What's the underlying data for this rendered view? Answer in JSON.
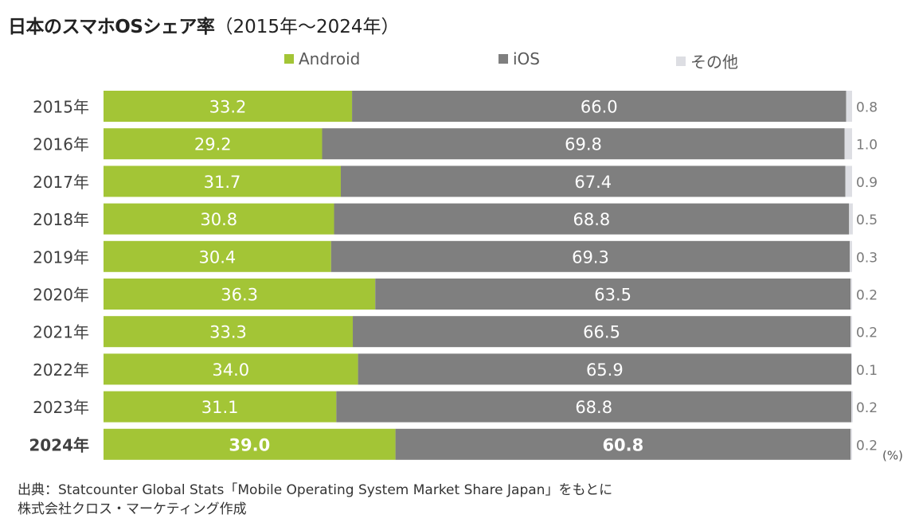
{
  "title": "日本のスマホOSシェア率",
  "subtitle": "（2015年～2024年）",
  "legend": [
    {
      "label": "Android",
      "color": "#a3c536"
    },
    {
      "label": "iOS",
      "color": "#7f7f7f"
    },
    {
      "label": "その他",
      "color": "#dddee3"
    }
  ],
  "unit_label": "(%)",
  "source_line1": "出典：Statcounter Global Stats「Mobile Operating System Market Share Japan」をもとに",
  "source_line2": "株式会社クロス・マーケティング作成",
  "chart_data": {
    "type": "bar",
    "orientation": "horizontal",
    "stacked": true,
    "categories": [
      "2015年",
      "2016年",
      "2017年",
      "2018年",
      "2019年",
      "2020年",
      "2021年",
      "2022年",
      "2023年",
      "2024年"
    ],
    "highlight_category": "2024年",
    "series": [
      {
        "name": "Android",
        "color": "#a3c536",
        "values": [
          33.2,
          29.2,
          31.7,
          30.8,
          30.4,
          36.3,
          33.3,
          34.0,
          31.1,
          39.0
        ]
      },
      {
        "name": "iOS",
        "color": "#7f7f7f",
        "values": [
          66.0,
          69.8,
          67.4,
          68.8,
          69.3,
          63.5,
          66.5,
          65.9,
          68.8,
          60.8
        ]
      },
      {
        "name": "その他",
        "color": "#dddee3",
        "values": [
          0.8,
          1.0,
          0.9,
          0.5,
          0.3,
          0.2,
          0.2,
          0.1,
          0.2,
          0.2
        ]
      }
    ],
    "value_labels": {
      "Android": [
        "33.2",
        "29.2",
        "31.7",
        "30.8",
        "30.4",
        "36.3",
        "33.3",
        "34.0",
        "31.1",
        "39.0"
      ],
      "iOS": [
        "66.0",
        "69.8",
        "67.4",
        "68.8",
        "69.3",
        "63.5",
        "66.5",
        "65.9",
        "68.8",
        "60.8"
      ],
      "その他": [
        "0.8",
        "1.0",
        "0.9",
        "0.5",
        "0.3",
        "0.2",
        "0.2",
        "0.1",
        "0.2",
        "0.2"
      ]
    },
    "xlim": [
      0,
      100
    ],
    "grid": false,
    "legend_position": "top"
  }
}
